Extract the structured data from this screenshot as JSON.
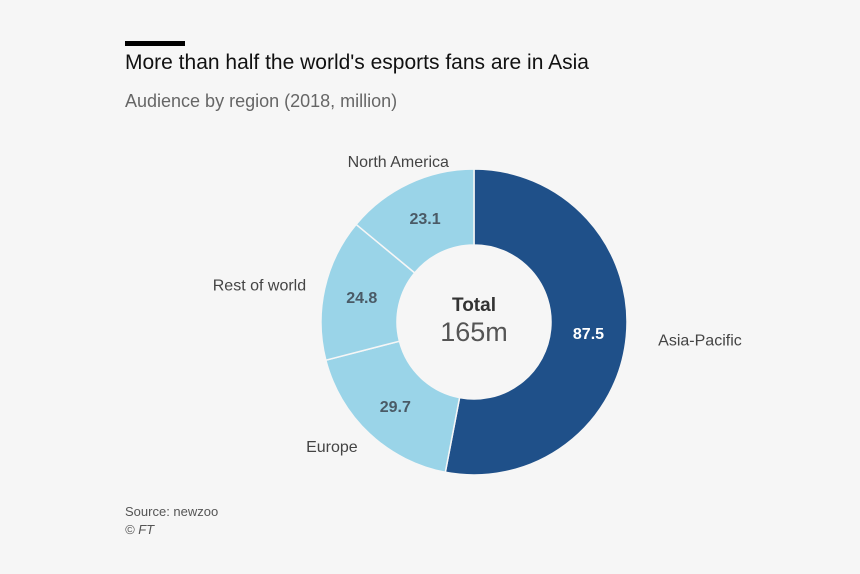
{
  "header": {
    "title": "More than half the world's esports fans are in Asia",
    "subtitle": "Audience by region (2018, million)"
  },
  "center": {
    "label": "Total",
    "value": "165m"
  },
  "footer": {
    "source": "Source: newzoo",
    "credit": "© FT"
  },
  "colors": {
    "primary": "#1f5089",
    "secondary": "#9ad4e8",
    "background": "#f6f6f6"
  },
  "chart_data": {
    "type": "pie",
    "title": "More than half the world's esports fans are in Asia",
    "subtitle": "Audience by region (2018, million)",
    "categories": [
      "Asia-Pacific",
      "Europe",
      "Rest of world",
      "North America"
    ],
    "values": [
      87.5,
      29.7,
      24.8,
      23.1
    ],
    "value_labels": [
      "87.5",
      "29.7",
      "24.8",
      "23.1"
    ],
    "colors": [
      "#1f5089",
      "#9ad4e8",
      "#9ad4e8",
      "#9ad4e8"
    ],
    "donut": true,
    "total_label": "Total",
    "total_value": "165m"
  }
}
